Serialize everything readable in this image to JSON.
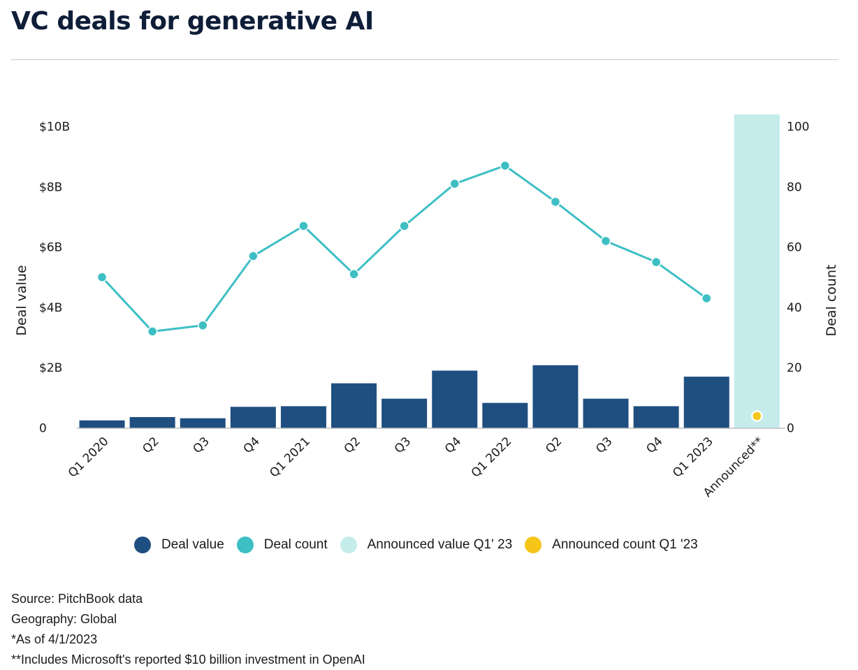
{
  "title": "VC deals for generative AI",
  "chart_data": {
    "type": "bar+line",
    "categories": [
      "Q1 2020",
      "Q2",
      "Q3",
      "Q4",
      "Q1 2021",
      "Q2",
      "Q3",
      "Q4",
      "Q1 2022",
      "Q2",
      "Q3",
      "Q4",
      "Q1 2023",
      "Announced**"
    ],
    "series": [
      {
        "name": "Deal value",
        "type": "bar",
        "axis": "left",
        "color": "#1f4e80",
        "values": [
          0.25,
          0.36,
          0.32,
          0.7,
          0.72,
          1.48,
          0.97,
          1.9,
          0.83,
          2.08,
          0.97,
          0.72,
          1.7,
          null
        ]
      },
      {
        "name": "Deal count",
        "type": "line",
        "axis": "right",
        "color": "#3dbfc4",
        "values": [
          50,
          32,
          34,
          57,
          67,
          51,
          67,
          81,
          87,
          75,
          62,
          55,
          43,
          null
        ]
      },
      {
        "name": "Announced value Q1' 23",
        "type": "bar",
        "axis": "left",
        "color": "#c4ecea",
        "values": [
          null,
          null,
          null,
          null,
          null,
          null,
          null,
          null,
          null,
          null,
          null,
          null,
          null,
          10.4
        ]
      },
      {
        "name": "Announced count Q1 '23",
        "type": "point",
        "axis": "right",
        "color": "#f5c518",
        "values": [
          null,
          null,
          null,
          null,
          null,
          null,
          null,
          null,
          null,
          null,
          null,
          null,
          null,
          1
        ]
      }
    ],
    "ylabel_left": "Deal value",
    "ylabel_right": "Deal count",
    "left_ticks": [
      "0",
      "$2B",
      "$4B",
      "$6B",
      "$8B",
      "$10B"
    ],
    "right_ticks": [
      "0",
      "20",
      "40",
      "60",
      "80",
      "100"
    ],
    "ylim_left": [
      0,
      10
    ],
    "ylim_right": [
      0,
      100
    ],
    "grid": false,
    "legend_position": "bottom"
  },
  "legend": [
    {
      "label": "Deal value",
      "color": "#1f4e80"
    },
    {
      "label": "Deal count",
      "color": "#3dbfc4"
    },
    {
      "label": "Announced value Q1' 23",
      "color": "#c4ecea"
    },
    {
      "label": "Announced count Q1 '23",
      "color": "#f5c518"
    }
  ],
  "notes": {
    "source": "Source: PitchBook data",
    "geography": "Geography: Global",
    "as_of": "*As of 4/1/2023",
    "footnote": "**Includes Microsoft's reported $10 billion investment in OpenAI"
  }
}
